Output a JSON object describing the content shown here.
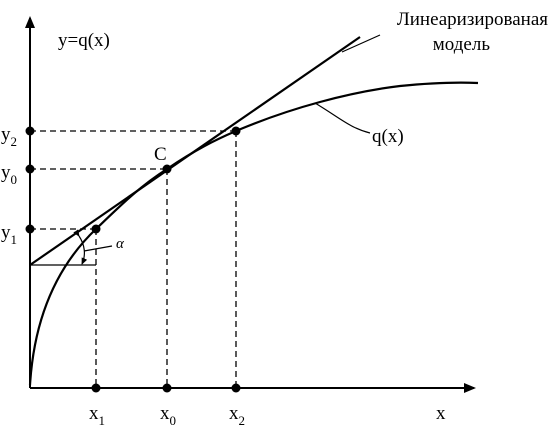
{
  "axes": {
    "y_label": "y=q(x)",
    "x_label": "x"
  },
  "points": {
    "c_label": "C"
  },
  "x_ticks": [
    {
      "main": "x",
      "sub": "1"
    },
    {
      "main": "x",
      "sub": "0"
    },
    {
      "main": "x",
      "sub": "2"
    }
  ],
  "y_ticks": [
    {
      "main": "y",
      "sub": "2"
    },
    {
      "main": "y",
      "sub": "0"
    },
    {
      "main": "y",
      "sub": "1"
    }
  ],
  "labels": {
    "linear_model_line1": "Линеаризированая",
    "linear_model_line2": "модель",
    "curve_label": "q(x)",
    "angle_label": "α"
  }
}
